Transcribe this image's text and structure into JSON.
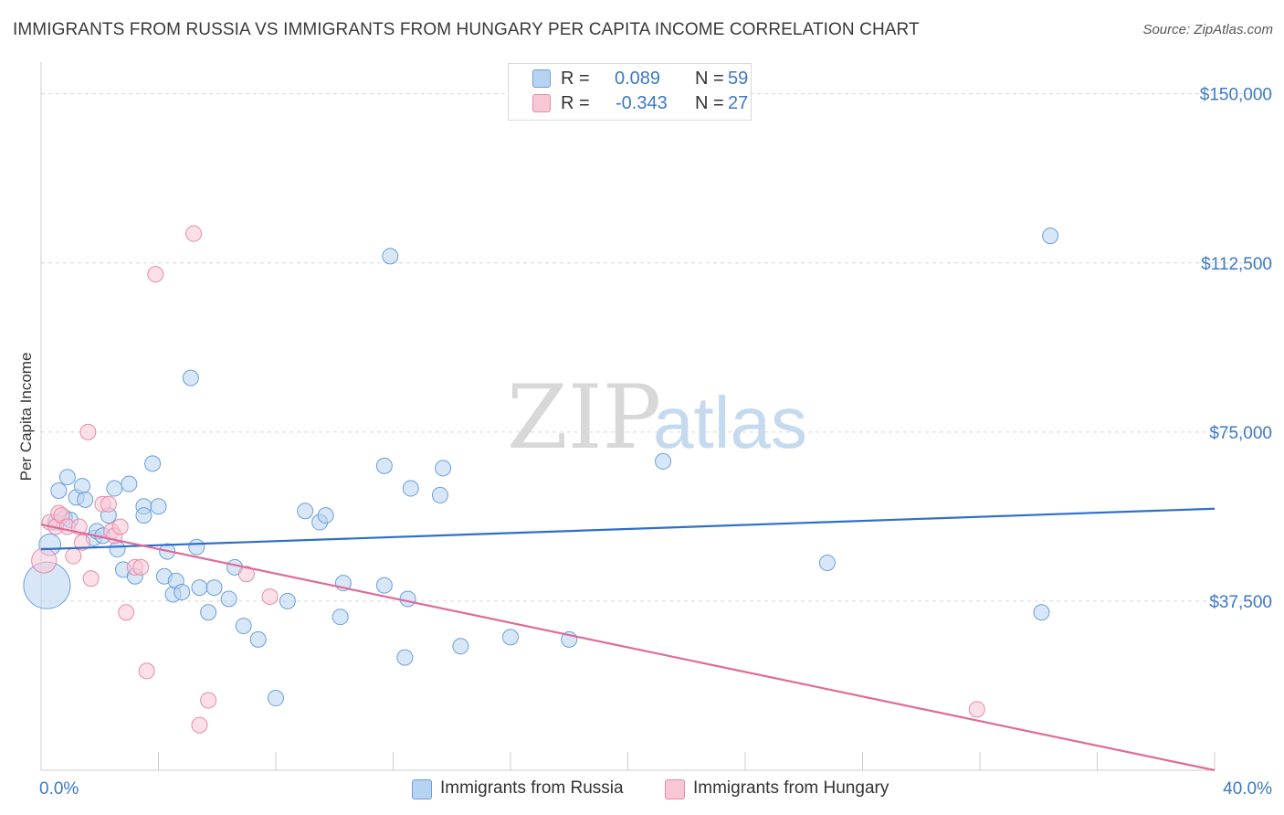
{
  "title": "IMMIGRANTS FROM RUSSIA VS IMMIGRANTS FROM HUNGARY PER CAPITA INCOME CORRELATION CHART",
  "source": "Source: ZipAtlas.com",
  "watermark": {
    "zip": "ZIP",
    "atlas": "atlas"
  },
  "legend": {
    "russia": {
      "r_label": "R =",
      "r_value": "0.089",
      "n_label": "N =",
      "n_value": "59"
    },
    "hungary": {
      "r_label": "R =",
      "r_value": "-0.343",
      "n_label": "N =",
      "n_value": "27"
    }
  },
  "colors": {
    "russia_fill": "#b8d3f2",
    "russia_stroke": "#6a9fd8",
    "russia_line": "#2e6fc9",
    "hungary_fill": "#f9c6d6",
    "hungary_stroke": "#e88aa8",
    "hungary_line": "#e06a98",
    "tick_label": "#3b78c8",
    "grid": "#d6d6d6"
  },
  "chart_data": {
    "type": "scatter",
    "title": "IMMIGRANTS FROM RUSSIA VS IMMIGRANTS FROM HUNGARY PER CAPITA INCOME CORRELATION CHART",
    "xlabel": "",
    "ylabel": "Per Capita Income",
    "xlim": [
      0,
      40
    ],
    "ylim": [
      0,
      155000
    ],
    "x_tick_labels": [
      "0.0%",
      "40.0%"
    ],
    "y_ticks": [
      37500,
      75000,
      112500,
      150000
    ],
    "y_tick_labels": [
      "$37,500",
      "$75,000",
      "$112,500",
      "$150,000"
    ],
    "grid": "horizontal dashed",
    "legend_position": "top-center",
    "series": [
      {
        "name": "Immigrants from Russia",
        "r": 0.089,
        "n": 59,
        "trend": {
          "x": [
            0,
            40
          ],
          "y": [
            49000,
            58000
          ]
        },
        "points": [
          {
            "x": 0.2,
            "y": 41000,
            "s": 3
          },
          {
            "x": 0.3,
            "y": 50000,
            "s": 1.4
          },
          {
            "x": 0.5,
            "y": 55000,
            "s": 1
          },
          {
            "x": 0.6,
            "y": 62000,
            "s": 1
          },
          {
            "x": 0.8,
            "y": 56000,
            "s": 1
          },
          {
            "x": 0.9,
            "y": 65000,
            "s": 1
          },
          {
            "x": 1.2,
            "y": 60500,
            "s": 1
          },
          {
            "x": 1.4,
            "y": 63000,
            "s": 1
          },
          {
            "x": 1.5,
            "y": 60000,
            "s": 1
          },
          {
            "x": 1.8,
            "y": 51500,
            "s": 1
          },
          {
            "x": 1.9,
            "y": 53000,
            "s": 1
          },
          {
            "x": 2.1,
            "y": 52000,
            "s": 1
          },
          {
            "x": 2.3,
            "y": 56500,
            "s": 1
          },
          {
            "x": 2.5,
            "y": 62500,
            "s": 1
          },
          {
            "x": 2.6,
            "y": 49000,
            "s": 1
          },
          {
            "x": 2.8,
            "y": 44500,
            "s": 1
          },
          {
            "x": 3.0,
            "y": 63500,
            "s": 1
          },
          {
            "x": 3.2,
            "y": 43000,
            "s": 1
          },
          {
            "x": 3.5,
            "y": 58500,
            "s": 1
          },
          {
            "x": 3.5,
            "y": 56500,
            "s": 1
          },
          {
            "x": 3.8,
            "y": 68000,
            "s": 1
          },
          {
            "x": 4.0,
            "y": 58500,
            "s": 1
          },
          {
            "x": 4.2,
            "y": 43000,
            "s": 1
          },
          {
            "x": 4.3,
            "y": 48500,
            "s": 1
          },
          {
            "x": 4.5,
            "y": 39000,
            "s": 1
          },
          {
            "x": 4.6,
            "y": 42000,
            "s": 1
          },
          {
            "x": 4.8,
            "y": 39500,
            "s": 1
          },
          {
            "x": 5.1,
            "y": 87000,
            "s": 1
          },
          {
            "x": 5.3,
            "y": 49500,
            "s": 1
          },
          {
            "x": 5.4,
            "y": 40500,
            "s": 1
          },
          {
            "x": 5.7,
            "y": 35000,
            "s": 1
          },
          {
            "x": 5.9,
            "y": 40500,
            "s": 1
          },
          {
            "x": 6.4,
            "y": 38000,
            "s": 1
          },
          {
            "x": 6.6,
            "y": 45000,
            "s": 1
          },
          {
            "x": 6.9,
            "y": 32000,
            "s": 1
          },
          {
            "x": 7.4,
            "y": 29000,
            "s": 1
          },
          {
            "x": 8.0,
            "y": 16000,
            "s": 1
          },
          {
            "x": 8.4,
            "y": 37500,
            "s": 1
          },
          {
            "x": 9.0,
            "y": 57500,
            "s": 1
          },
          {
            "x": 9.5,
            "y": 55000,
            "s": 1
          },
          {
            "x": 9.7,
            "y": 56500,
            "s": 1
          },
          {
            "x": 10.2,
            "y": 34000,
            "s": 1
          },
          {
            "x": 10.3,
            "y": 41500,
            "s": 1
          },
          {
            "x": 11.7,
            "y": 67500,
            "s": 1
          },
          {
            "x": 11.7,
            "y": 41000,
            "s": 1
          },
          {
            "x": 11.9,
            "y": 114000,
            "s": 1
          },
          {
            "x": 12.4,
            "y": 25000,
            "s": 1
          },
          {
            "x": 12.5,
            "y": 38000,
            "s": 1
          },
          {
            "x": 12.6,
            "y": 62500,
            "s": 1
          },
          {
            "x": 13.6,
            "y": 61000,
            "s": 1
          },
          {
            "x": 13.7,
            "y": 67000,
            "s": 1
          },
          {
            "x": 14.3,
            "y": 27500,
            "s": 1
          },
          {
            "x": 16.0,
            "y": 29500,
            "s": 1
          },
          {
            "x": 18.0,
            "y": 29000,
            "s": 1
          },
          {
            "x": 21.2,
            "y": 68500,
            "s": 1
          },
          {
            "x": 26.8,
            "y": 46000,
            "s": 1
          },
          {
            "x": 34.1,
            "y": 35000,
            "s": 1
          },
          {
            "x": 34.4,
            "y": 118500,
            "s": 1
          },
          {
            "x": 1.0,
            "y": 55500,
            "s": 1
          }
        ]
      },
      {
        "name": "Immigrants from Hungary",
        "r": -0.343,
        "n": 27,
        "trend": {
          "x": [
            0,
            40
          ],
          "y": [
            54500,
            0
          ]
        },
        "points": [
          {
            "x": 0.1,
            "y": 46500,
            "s": 1.6
          },
          {
            "x": 0.3,
            "y": 55000,
            "s": 1
          },
          {
            "x": 0.5,
            "y": 54000,
            "s": 1
          },
          {
            "x": 0.6,
            "y": 57000,
            "s": 1
          },
          {
            "x": 0.7,
            "y": 56500,
            "s": 1
          },
          {
            "x": 0.9,
            "y": 54000,
            "s": 1
          },
          {
            "x": 1.1,
            "y": 47500,
            "s": 1
          },
          {
            "x": 1.3,
            "y": 54000,
            "s": 1
          },
          {
            "x": 1.4,
            "y": 50500,
            "s": 1
          },
          {
            "x": 1.6,
            "y": 75000,
            "s": 1
          },
          {
            "x": 1.7,
            "y": 42500,
            "s": 1
          },
          {
            "x": 2.1,
            "y": 59000,
            "s": 1
          },
          {
            "x": 2.3,
            "y": 59000,
            "s": 1
          },
          {
            "x": 2.4,
            "y": 53000,
            "s": 1
          },
          {
            "x": 2.5,
            "y": 52000,
            "s": 1
          },
          {
            "x": 2.7,
            "y": 54000,
            "s": 1
          },
          {
            "x": 2.9,
            "y": 35000,
            "s": 1
          },
          {
            "x": 3.2,
            "y": 45000,
            "s": 1
          },
          {
            "x": 3.4,
            "y": 45000,
            "s": 1
          },
          {
            "x": 3.6,
            "y": 22000,
            "s": 1
          },
          {
            "x": 3.9,
            "y": 110000,
            "s": 1
          },
          {
            "x": 5.2,
            "y": 119000,
            "s": 1
          },
          {
            "x": 5.4,
            "y": 10000,
            "s": 1
          },
          {
            "x": 5.7,
            "y": 15500,
            "s": 1
          },
          {
            "x": 7.0,
            "y": 43500,
            "s": 1
          },
          {
            "x": 7.8,
            "y": 38500,
            "s": 1
          },
          {
            "x": 31.9,
            "y": 13500,
            "s": 1
          }
        ]
      }
    ]
  }
}
